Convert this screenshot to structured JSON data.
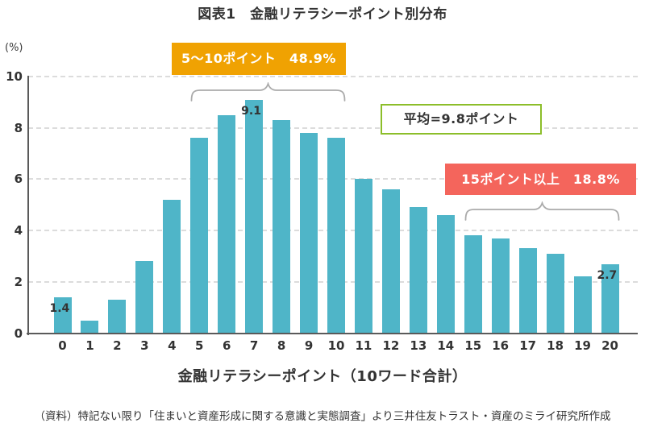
{
  "title": "図表1　金融リテラシーポイント別分布",
  "y_axis_unit": "(%)",
  "annotations": {
    "range_5_10": {
      "label": "5～10ポイント　48.9%",
      "color": "#F0A202"
    },
    "mean": {
      "label": "平均=9.8ポイント",
      "border_color": "#8CBE2A"
    },
    "range_15_plus": {
      "label": "15ポイント以上　18.8%",
      "color": "#F4655C"
    }
  },
  "chart_data": {
    "type": "bar",
    "title": "図表1　金融リテラシーポイント別分布",
    "categories": [
      "0",
      "1",
      "2",
      "3",
      "4",
      "5",
      "6",
      "7",
      "8",
      "9",
      "10",
      "11",
      "12",
      "13",
      "14",
      "15",
      "16",
      "17",
      "18",
      "19",
      "20"
    ],
    "values": [
      1.4,
      0.5,
      1.3,
      2.8,
      5.2,
      7.6,
      8.5,
      9.1,
      8.3,
      7.8,
      7.6,
      6.0,
      5.6,
      4.9,
      4.6,
      3.8,
      3.7,
      3.3,
      3.1,
      2.2,
      2.7
    ],
    "xlabel": "金融リテラシーポイント（10ワード合計）",
    "ylabel": "(%)",
    "ylim": [
      0,
      10
    ],
    "yticks": [
      0,
      2,
      4,
      6,
      8,
      10
    ],
    "grid": "horizontal-dashed",
    "legend": "none",
    "bar_color": "#4FB5C8",
    "point_labels": [
      {
        "index": 0,
        "text": "1.4"
      },
      {
        "index": 7,
        "text": "9.1"
      },
      {
        "index": 20,
        "text": "2.7"
      }
    ],
    "group_sums": {
      "5_to_10": "48.9%",
      "15_and_over": "18.8%"
    },
    "mean": "9.8ポイント"
  },
  "xlabel": "金融リテラシーポイント（10ワード合計）",
  "footer": "（資料）特記ない限り「住まいと資産形成に関する意識と実態調査」より三井住友トラスト・資産のミライ研究所作成"
}
